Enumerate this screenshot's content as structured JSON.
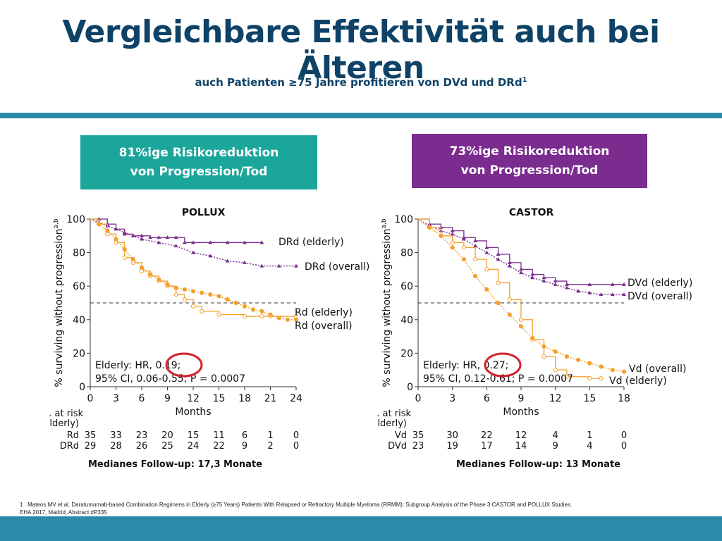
{
  "slide": {
    "title": "Vergleichbare Effektivität auch bei Älteren",
    "subtitle": "auch Patienten ≥75 Jahre profitieren von DVd und DRd",
    "subtitle_sup": "1",
    "box_left": {
      "line1": "81%ige Risikoreduktion",
      "line2": "von Progression/Tod",
      "color": "#1aa69a"
    },
    "box_right": {
      "line1": "73%ige Risikoreduktion",
      "line2": "von Progression/Tod",
      "color": "#7b2c8f"
    },
    "median_left": "Medianes Follow-up: 17,3 Monate",
    "median_right": "Medianes Follow-up: 13 Monate",
    "footnote_line1": "1 . Mateos MV et al. Daratumumab-based Combination Regimens in Elderly (≥75 Years) Patients With Relapsed or Refractory Multiple Myeloma (RRMM): Subgroup Analysis of the Phase 3 CASTOR and POLLUX Studies.",
    "footnote_line2": "EHA 2017, Madrid, Abstract #P335"
  },
  "chart_data": [
    {
      "type": "line",
      "title": "POLLUX",
      "xlabel": "Months",
      "ylabel": "% surviving without progression",
      "ylabel_sup": "a,b",
      "xlim": [
        0,
        24
      ],
      "ylim": [
        0,
        100
      ],
      "xticks": [
        0,
        3,
        6,
        9,
        12,
        15,
        18,
        21,
        24
      ],
      "yticks": [
        0,
        20,
        40,
        60,
        80,
        100
      ],
      "reference_line": 50,
      "colors": {
        "purple": "#7b2c8f",
        "orange": "#f5a02c"
      },
      "series": [
        {
          "name": "DRd (elderly)",
          "color": "#7b2c8f",
          "style": "solid",
          "x": [
            0,
            1,
            2,
            3,
            4,
            5,
            6,
            7,
            8,
            9,
            10,
            11,
            12,
            14,
            16,
            18,
            20
          ],
          "y": [
            100,
            100,
            97,
            94,
            91,
            90,
            90,
            89,
            89,
            89,
            89,
            86,
            86,
            86,
            86,
            86,
            86
          ]
        },
        {
          "name": "DRd (overall)",
          "color": "#7b2c8f",
          "style": "dotted",
          "x": [
            0,
            1,
            2,
            3,
            4,
            5,
            6,
            8,
            10,
            12,
            14,
            16,
            18,
            20,
            22,
            24
          ],
          "y": [
            100,
            98,
            96,
            94,
            92,
            90,
            88,
            86,
            84,
            80,
            78,
            75,
            74,
            72,
            72,
            72
          ]
        },
        {
          "name": "Rd (elderly)",
          "color": "#f5a02c",
          "style": "solid",
          "x": [
            0,
            1,
            2,
            3,
            4,
            5,
            6,
            7,
            8,
            9,
            10,
            11,
            12,
            13,
            15,
            18,
            20,
            21,
            24
          ],
          "y": [
            100,
            97,
            91,
            86,
            77,
            74,
            69,
            66,
            63,
            60,
            55,
            52,
            48,
            45,
            43,
            42,
            42,
            42,
            42
          ]
        },
        {
          "name": "Rd (overall)",
          "color": "#f5a02c",
          "style": "dotted",
          "x": [
            0,
            1,
            2,
            3,
            4,
            5,
            6,
            7,
            8,
            9,
            10,
            11,
            12,
            13,
            14,
            15,
            16,
            17,
            18,
            19,
            20,
            21,
            22,
            23,
            24
          ],
          "y": [
            100,
            97,
            93,
            88,
            82,
            76,
            71,
            67,
            64,
            61,
            59,
            58,
            57,
            56,
            55,
            54,
            52,
            50,
            48,
            46,
            45,
            43,
            41,
            40,
            40
          ]
        }
      ],
      "annotations": {
        "line1": "Elderly: HR, 0.19;",
        "line2": "95% CI, 0.06-0.55; P = 0.0007"
      },
      "risk_table": {
        "header": [
          "No. at risk",
          "(elderly)"
        ],
        "rows": [
          {
            "label": "Rd",
            "values": [
              35,
              33,
              23,
              20,
              15,
              11,
              6,
              1,
              0
            ]
          },
          {
            "label": "DRd",
            "values": [
              29,
              28,
              26,
              25,
              24,
              22,
              9,
              2,
              0
            ]
          }
        ]
      }
    },
    {
      "type": "line",
      "title": "CASTOR",
      "xlabel": "Months",
      "ylabel": "% surviving without progression",
      "ylabel_sup": "a,b",
      "xlim": [
        0,
        18
      ],
      "ylim": [
        0,
        100
      ],
      "xticks": [
        0,
        3,
        6,
        9,
        12,
        15,
        18
      ],
      "yticks": [
        0,
        20,
        40,
        60,
        80,
        100
      ],
      "reference_line": 50,
      "colors": {
        "purple": "#7b2c8f",
        "orange": "#f5a02c"
      },
      "series": [
        {
          "name": "DVd (elderly)",
          "color": "#7b2c8f",
          "style": "solid",
          "x": [
            0,
            1,
            2,
            3,
            4,
            5,
            6,
            7,
            8,
            9,
            10,
            11,
            12,
            13,
            15,
            17,
            18
          ],
          "y": [
            100,
            97,
            95,
            93,
            89,
            87,
            83,
            79,
            74,
            70,
            67,
            65,
            63,
            61,
            61,
            61,
            61
          ]
        },
        {
          "name": "DVd (overall)",
          "color": "#7b2c8f",
          "style": "dotted",
          "x": [
            0,
            1,
            2,
            3,
            4,
            5,
            6,
            7,
            8,
            9,
            10,
            11,
            12,
            13,
            14,
            15,
            16,
            17,
            18
          ],
          "y": [
            100,
            96,
            93,
            91,
            88,
            84,
            80,
            76,
            72,
            68,
            65,
            63,
            61,
            59,
            57,
            56,
            55,
            55,
            55
          ]
        },
        {
          "name": "Vd (elderly)",
          "color": "#f5a02c",
          "style": "solid",
          "x": [
            0,
            1,
            2,
            3,
            4,
            5,
            6,
            7,
            8,
            9,
            10,
            11,
            12,
            13,
            15,
            16
          ],
          "y": [
            100,
            95,
            90,
            86,
            83,
            76,
            70,
            62,
            52,
            40,
            28,
            18,
            10,
            6,
            5,
            5
          ]
        },
        {
          "name": "Vd (overall)",
          "color": "#f5a02c",
          "style": "dotted",
          "x": [
            0,
            1,
            2,
            3,
            4,
            5,
            6,
            7,
            8,
            9,
            10,
            11,
            12,
            13,
            14,
            15,
            16,
            17,
            18
          ],
          "y": [
            100,
            95,
            90,
            83,
            76,
            66,
            58,
            50,
            43,
            36,
            29,
            24,
            21,
            18,
            16,
            14,
            12,
            10,
            9
          ]
        }
      ],
      "annotations": {
        "line1": "Elderly: HR, 0.27;",
        "line2": "95% CI, 0.12-0.61; P = 0.0007"
      },
      "risk_table": {
        "header": [
          "No. at risk",
          "(elderly)"
        ],
        "rows": [
          {
            "label": "Vd",
            "values": [
              35,
              30,
              22,
              12,
              4,
              1,
              0
            ]
          },
          {
            "label": "DVd",
            "values": [
              23,
              19,
              17,
              14,
              9,
              4,
              0
            ]
          }
        ]
      }
    }
  ]
}
